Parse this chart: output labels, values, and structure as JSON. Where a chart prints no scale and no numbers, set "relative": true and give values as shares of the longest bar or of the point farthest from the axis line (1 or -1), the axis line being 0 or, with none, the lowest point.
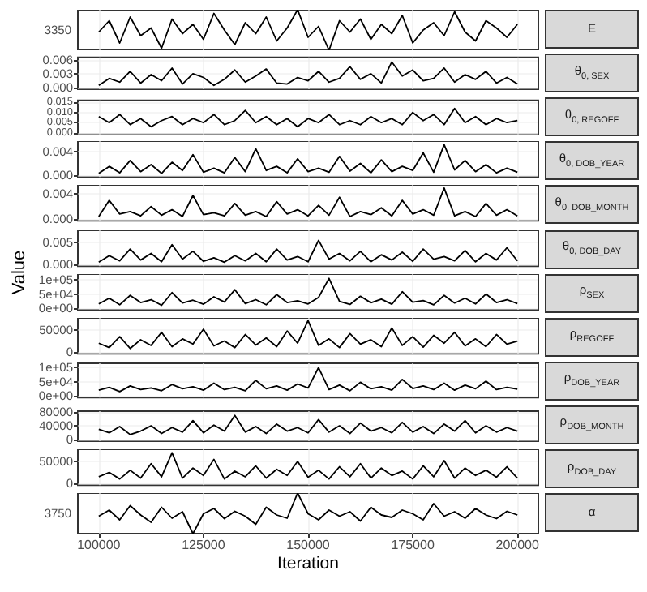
{
  "chart_data": [
    {
      "type": "line",
      "y2label": "E",
      "relative": true,
      "annotations": [
        "3350"
      ],
      "tick_labels": "y",
      "grid": true,
      "xlim": [
        95000,
        205000
      ],
      "xticks": [
        100000,
        125000,
        150000,
        175000,
        200000
      ],
      "x": [
        100000,
        102500,
        105000,
        107500,
        110000,
        112500,
        115000,
        117500,
        120000,
        122500,
        125000,
        127500,
        130000,
        132500,
        135000,
        137500,
        140000,
        142500,
        145000,
        147500,
        150000,
        152500,
        155000,
        157500,
        160000,
        162500,
        165000,
        167500,
        170000,
        172500,
        175000,
        177500,
        180000,
        182500,
        185000,
        187500,
        190000,
        192500,
        195000,
        197500,
        200000
      ],
      "series": [
        {
          "color": "#000000",
          "values": [
            0.45,
            0.73,
            0.18,
            0.82,
            0.36,
            0.55,
            0.05,
            0.77,
            0.41,
            0.64,
            0.27,
            0.91,
            0.5,
            0.14,
            0.68,
            0.41,
            0.82,
            0.23,
            0.55,
            1,
            0.32,
            0.59,
            0,
            0.73,
            0.45,
            0.77,
            0.27,
            0.64,
            0.41,
            0.86,
            0.18,
            0.5,
            0.68,
            0.36,
            0.95,
            0.45,
            0.23,
            0.73,
            0.55,
            0.32,
            0.64
          ]
        }
      ]
    },
    {
      "type": "line",
      "y2label": "θ$_{0, SEX}$",
      "tick_labels": "y",
      "grid": true,
      "xlim": [
        95000,
        205000
      ],
      "xticks": [
        100000,
        125000,
        150000,
        175000,
        200000
      ],
      "ylim": [
        -0.0003,
        0.0065
      ],
      "yticks": [
        {
          "value": 0,
          "label": "0.000"
        },
        {
          "value": 0.003,
          "label": "0.003"
        },
        {
          "value": 0.006,
          "label": "0.006"
        }
      ],
      "x": [
        100000,
        102500,
        105000,
        107500,
        110000,
        112500,
        115000,
        117500,
        120000,
        122500,
        125000,
        127500,
        130000,
        132500,
        135000,
        137500,
        140000,
        142500,
        145000,
        147500,
        150000,
        152500,
        155000,
        157500,
        160000,
        162500,
        165000,
        167500,
        170000,
        172500,
        175000,
        177500,
        180000,
        182500,
        185000,
        187500,
        190000,
        192500,
        195000,
        197500,
        200000
      ],
      "series": [
        {
          "color": "#000000",
          "values": [
            0.0005,
            0.002,
            0.0012,
            0.0035,
            0.001,
            0.0028,
            0.0015,
            0.0042,
            0.0008,
            0.003,
            0.0022,
            0.0005,
            0.0018,
            0.0038,
            0.0012,
            0.0025,
            0.004,
            0.001,
            0.0008,
            0.0022,
            0.0015,
            0.0035,
            0.0012,
            0.002,
            0.0045,
            0.0018,
            0.003,
            0.001,
            0.0055,
            0.0025,
            0.0038,
            0.0015,
            0.002,
            0.0042,
            0.0012,
            0.0028,
            0.0018,
            0.0035,
            0.001,
            0.0022,
            0.0008
          ]
        }
      ]
    },
    {
      "type": "line",
      "y2label": "θ$_{0, REGOFF}$",
      "tick_labels": "y",
      "grid": true,
      "xlim": [
        95000,
        205000
      ],
      "xticks": [
        100000,
        125000,
        150000,
        175000,
        200000
      ],
      "ylim": [
        -0.0008,
        0.016
      ],
      "yticks": [
        {
          "value": 0,
          "label": "0.000"
        },
        {
          "value": 0.005,
          "label": "0.005"
        },
        {
          "value": 0.01,
          "label": "0.010"
        },
        {
          "value": 0.015,
          "label": "0.015"
        }
      ],
      "x": [
        100000,
        102500,
        105000,
        107500,
        110000,
        112500,
        115000,
        117500,
        120000,
        122500,
        125000,
        127500,
        130000,
        132500,
        135000,
        137500,
        140000,
        142500,
        145000,
        147500,
        150000,
        152500,
        155000,
        157500,
        160000,
        162500,
        165000,
        167500,
        170000,
        172500,
        175000,
        177500,
        180000,
        182500,
        185000,
        187500,
        190000,
        192500,
        195000,
        197500,
        200000
      ],
      "series": [
        {
          "color": "#000000",
          "values": [
            0.008,
            0.005,
            0.009,
            0.004,
            0.007,
            0.003,
            0.006,
            0.008,
            0.004,
            0.007,
            0.005,
            0.009,
            0.004,
            0.006,
            0.011,
            0.005,
            0.008,
            0.004,
            0.007,
            0.003,
            0.007,
            0.005,
            0.009,
            0.004,
            0.006,
            0.004,
            0.008,
            0.005,
            0.007,
            0.004,
            0.01,
            0.006,
            0.009,
            0.004,
            0.012,
            0.005,
            0.008,
            0.004,
            0.007,
            0.005,
            0.006
          ]
        }
      ]
    },
    {
      "type": "line",
      "y2label": "θ$_{0, DOB_YEAR}$",
      "tick_labels": "y",
      "grid": true,
      "xlim": [
        95000,
        205000
      ],
      "xticks": [
        100000,
        125000,
        150000,
        175000,
        200000
      ],
      "ylim": [
        -0.0003,
        0.0058
      ],
      "yticks": [
        {
          "value": 0,
          "label": "0.000"
        },
        {
          "value": 0.004,
          "label": "0.004"
        }
      ],
      "x": [
        100000,
        102500,
        105000,
        107500,
        110000,
        112500,
        115000,
        117500,
        120000,
        122500,
        125000,
        127500,
        130000,
        132500,
        135000,
        137500,
        140000,
        142500,
        145000,
        147500,
        150000,
        152500,
        155000,
        157500,
        160000,
        162500,
        165000,
        167500,
        170000,
        172500,
        175000,
        177500,
        180000,
        182500,
        185000,
        187500,
        190000,
        192500,
        195000,
        197500,
        200000
      ],
      "series": [
        {
          "color": "#000000",
          "values": [
            0.0003,
            0.0015,
            0.0004,
            0.0025,
            0.0006,
            0.0018,
            0.0003,
            0.0022,
            0.0008,
            0.0035,
            0.0005,
            0.0012,
            0.0004,
            0.003,
            0.0006,
            0.0045,
            0.0008,
            0.0015,
            0.0004,
            0.0028,
            0.0006,
            0.0012,
            0.0005,
            0.0032,
            0.0007,
            0.002,
            0.0004,
            0.0026,
            0.0006,
            0.0015,
            0.0008,
            0.0038,
            0.0005,
            0.0052,
            0.0009,
            0.0025,
            0.0006,
            0.0018,
            0.0004,
            0.0012,
            0.0005
          ]
        }
      ]
    },
    {
      "type": "line",
      "y2label": "θ$_{0, DOB_MONTH}$",
      "tick_labels": "y",
      "grid": true,
      "xlim": [
        95000,
        205000
      ],
      "xticks": [
        100000,
        125000,
        150000,
        175000,
        200000
      ],
      "ylim": [
        -0.0003,
        0.0055
      ],
      "yticks": [
        {
          "value": 0,
          "label": "0.000"
        },
        {
          "value": 0.004,
          "label": "0.004"
        }
      ],
      "x": [
        100000,
        102500,
        105000,
        107500,
        110000,
        112500,
        115000,
        117500,
        120000,
        122500,
        125000,
        127500,
        130000,
        132500,
        135000,
        137500,
        140000,
        142500,
        145000,
        147500,
        150000,
        152500,
        155000,
        157500,
        160000,
        162500,
        165000,
        167500,
        170000,
        172500,
        175000,
        177500,
        180000,
        182500,
        185000,
        187500,
        190000,
        192500,
        195000,
        197500,
        200000
      ],
      "series": [
        {
          "color": "#000000",
          "values": [
            0.0004,
            0.003,
            0.0008,
            0.0012,
            0.0005,
            0.002,
            0.0006,
            0.0015,
            0.0004,
            0.0038,
            0.0007,
            0.001,
            0.0005,
            0.0025,
            0.0006,
            0.0012,
            0.0004,
            0.0028,
            0.0008,
            0.0015,
            0.0005,
            0.0022,
            0.0006,
            0.0035,
            0.0004,
            0.0012,
            0.0007,
            0.0018,
            0.0005,
            0.003,
            0.0008,
            0.0015,
            0.0006,
            0.005,
            0.0005,
            0.0012,
            0.0004,
            0.0025,
            0.0006,
            0.0015,
            0.0005
          ]
        }
      ]
    },
    {
      "type": "line",
      "y2label": "θ$_{0, DOB_DAY}$",
      "tick_labels": "y",
      "grid": true,
      "xlim": [
        95000,
        205000
      ],
      "xticks": [
        100000,
        125000,
        150000,
        175000,
        200000
      ],
      "ylim": [
        -0.0004,
        0.0078
      ],
      "yticks": [
        {
          "value": 0,
          "label": "0.000"
        },
        {
          "value": 0.005,
          "label": "0.005"
        }
      ],
      "x": [
        100000,
        102500,
        105000,
        107500,
        110000,
        112500,
        115000,
        117500,
        120000,
        122500,
        125000,
        127500,
        130000,
        132500,
        135000,
        137500,
        140000,
        142500,
        145000,
        147500,
        150000,
        152500,
        155000,
        157500,
        160000,
        162500,
        165000,
        167500,
        170000,
        172500,
        175000,
        177500,
        180000,
        182500,
        185000,
        187500,
        190000,
        192500,
        195000,
        197500,
        200000
      ],
      "series": [
        {
          "color": "#000000",
          "values": [
            0.0005,
            0.002,
            0.0008,
            0.0035,
            0.001,
            0.0025,
            0.0006,
            0.0045,
            0.0012,
            0.003,
            0.0007,
            0.0015,
            0.0005,
            0.002,
            0.0008,
            0.0025,
            0.0006,
            0.0035,
            0.001,
            0.0018,
            0.0006,
            0.0055,
            0.0012,
            0.0025,
            0.0008,
            0.003,
            0.0006,
            0.0022,
            0.001,
            0.0028,
            0.0007,
            0.0035,
            0.0012,
            0.0018,
            0.0008,
            0.0032,
            0.0006,
            0.0025,
            0.001,
            0.0038,
            0.0008
          ]
        }
      ]
    },
    {
      "type": "line",
      "y2label": "ρ$_{SEX}$",
      "ylabel": "Value",
      "tick_labels": "y",
      "grid": true,
      "xlim": [
        95000,
        205000
      ],
      "xticks": [
        100000,
        125000,
        150000,
        175000,
        200000
      ],
      "ylim": [
        -6000,
        120000
      ],
      "yticks": [
        {
          "value": 0,
          "label": "0e+00"
        },
        {
          "value": 50000,
          "label": "5e+04"
        },
        {
          "value": 100000,
          "label": "1e+05"
        }
      ],
      "x": [
        100000,
        102500,
        105000,
        107500,
        110000,
        112500,
        115000,
        117500,
        120000,
        122500,
        125000,
        127500,
        130000,
        132500,
        135000,
        137500,
        140000,
        142500,
        145000,
        147500,
        150000,
        152500,
        155000,
        157500,
        160000,
        162500,
        165000,
        167500,
        170000,
        172500,
        175000,
        177500,
        180000,
        182500,
        185000,
        187500,
        190000,
        192500,
        195000,
        197500,
        200000
      ],
      "series": [
        {
          "color": "#000000",
          "values": [
            15000,
            35000,
            12000,
            45000,
            20000,
            30000,
            10000,
            55000,
            18000,
            28000,
            14000,
            40000,
            22000,
            65000,
            16000,
            30000,
            12000,
            48000,
            20000,
            26000,
            15000,
            38000,
            105000,
            24000,
            13000,
            42000,
            19000,
            32000,
            14000,
            58000,
            21000,
            27000,
            12000,
            45000,
            18000,
            35000,
            15000,
            50000,
            20000,
            30000,
            16000
          ]
        }
      ]
    },
    {
      "type": "line",
      "y2label": "ρ$_{REGOFF}$",
      "tick_labels": "y",
      "grid": true,
      "xlim": [
        95000,
        205000
      ],
      "xticks": [
        100000,
        125000,
        150000,
        175000,
        200000
      ],
      "ylim": [
        -4000,
        78000
      ],
      "yticks": [
        0,
        50000
      ],
      "x": [
        100000,
        102500,
        105000,
        107500,
        110000,
        112500,
        115000,
        117500,
        120000,
        122500,
        125000,
        127500,
        130000,
        132500,
        135000,
        137500,
        140000,
        142500,
        145000,
        147500,
        150000,
        152500,
        155000,
        157500,
        160000,
        162500,
        165000,
        167500,
        170000,
        172500,
        175000,
        177500,
        180000,
        182500,
        185000,
        187500,
        190000,
        192500,
        195000,
        197500,
        200000
      ],
      "series": [
        {
          "color": "#000000",
          "values": [
            20000,
            10000,
            35000,
            8000,
            28000,
            15000,
            45000,
            12000,
            30000,
            18000,
            52000,
            14000,
            25000,
            10000,
            40000,
            16000,
            32000,
            12000,
            48000,
            20000,
            72000,
            15000,
            30000,
            10000,
            42000,
            18000,
            28000,
            12000,
            55000,
            15000,
            35000,
            11000,
            38000,
            20000,
            45000,
            14000,
            30000,
            12000,
            40000,
            18000,
            25000
          ]
        }
      ]
    },
    {
      "type": "line",
      "y2label": "ρ$_{DOB_YEAR}$",
      "tick_labels": "y",
      "grid": true,
      "xlim": [
        95000,
        205000
      ],
      "xticks": [
        100000,
        125000,
        150000,
        175000,
        200000
      ],
      "ylim": [
        -6000,
        115000
      ],
      "yticks": [
        {
          "value": 0,
          "label": "0e+00"
        },
        {
          "value": 50000,
          "label": "5e+04"
        },
        {
          "value": 100000,
          "label": "1e+05"
        }
      ],
      "x": [
        100000,
        102500,
        105000,
        107500,
        110000,
        112500,
        115000,
        117500,
        120000,
        122500,
        125000,
        127500,
        130000,
        132500,
        135000,
        137500,
        140000,
        142500,
        145000,
        147500,
        150000,
        152500,
        155000,
        157500,
        160000,
        162500,
        165000,
        167500,
        170000,
        172500,
        175000,
        177500,
        180000,
        182500,
        185000,
        187500,
        190000,
        192500,
        195000,
        197500,
        200000
      ],
      "series": [
        {
          "color": "#000000",
          "values": [
            20000,
            30000,
            15000,
            35000,
            22000,
            28000,
            18000,
            40000,
            25000,
            32000,
            20000,
            45000,
            22000,
            30000,
            18000,
            55000,
            25000,
            35000,
            20000,
            42000,
            28000,
            100000,
            22000,
            38000,
            18000,
            48000,
            25000,
            32000,
            20000,
            58000,
            26000,
            35000,
            22000,
            45000,
            20000,
            38000,
            25000,
            52000,
            22000,
            30000,
            24000
          ]
        }
      ]
    },
    {
      "type": "line",
      "y2label": "ρ$_{DOB_MONTH}$",
      "tick_labels": "y",
      "grid": true,
      "xlim": [
        95000,
        205000
      ],
      "xticks": [
        100000,
        125000,
        150000,
        175000,
        200000
      ],
      "ylim": [
        -4000,
        82000
      ],
      "yticks": [
        0,
        40000,
        80000
      ],
      "x": [
        100000,
        102500,
        105000,
        107500,
        110000,
        112500,
        115000,
        117500,
        120000,
        122500,
        125000,
        127500,
        130000,
        132500,
        135000,
        137500,
        140000,
        142500,
        145000,
        147500,
        150000,
        152500,
        155000,
        157500,
        160000,
        162500,
        165000,
        167500,
        170000,
        172500,
        175000,
        177500,
        180000,
        182500,
        185000,
        187500,
        190000,
        192500,
        195000,
        197500,
        200000
      ],
      "series": [
        {
          "color": "#000000",
          "values": [
            30000,
            20000,
            38000,
            15000,
            25000,
            40000,
            18000,
            35000,
            22000,
            55000,
            20000,
            42000,
            25000,
            70000,
            22000,
            38000,
            18000,
            45000,
            25000,
            35000,
            20000,
            58000,
            22000,
            40000,
            18000,
            48000,
            25000,
            35000,
            20000,
            50000,
            22000,
            38000,
            18000,
            45000,
            25000,
            55000,
            20000,
            40000,
            22000,
            35000,
            25000
          ]
        }
      ]
    },
    {
      "type": "line",
      "y2label": "ρ$_{DOB_DAY}$",
      "tick_labels": "y",
      "grid": true,
      "xlim": [
        95000,
        205000
      ],
      "xticks": [
        100000,
        125000,
        150000,
        175000,
        200000
      ],
      "ylim": [
        -4000,
        78000
      ],
      "yticks": [
        0,
        50000
      ],
      "x": [
        100000,
        102500,
        105000,
        107500,
        110000,
        112500,
        115000,
        117500,
        120000,
        122500,
        125000,
        127500,
        130000,
        132500,
        135000,
        137500,
        140000,
        142500,
        145000,
        147500,
        150000,
        152500,
        155000,
        157500,
        160000,
        162500,
        165000,
        167500,
        170000,
        172500,
        175000,
        177500,
        180000,
        182500,
        185000,
        187500,
        190000,
        192500,
        195000,
        197500,
        200000
      ],
      "series": [
        {
          "color": "#000000",
          "values": [
            15000,
            25000,
            10000,
            30000,
            12000,
            45000,
            15000,
            70000,
            12000,
            35000,
            18000,
            55000,
            10000,
            28000,
            15000,
            40000,
            12000,
            32000,
            18000,
            50000,
            14000,
            30000,
            10000,
            38000,
            15000,
            45000,
            12000,
            35000,
            18000,
            28000,
            10000,
            40000,
            15000,
            52000,
            12000,
            35000,
            18000,
            30000,
            14000,
            38000,
            12000
          ]
        }
      ]
    },
    {
      "type": "line",
      "y2label": "α",
      "relative": true,
      "annotations": [
        "3750"
      ],
      "xlabel": "Iteration",
      "grid": true,
      "xlim": [
        95000,
        205000
      ],
      "xticks": [
        100000,
        125000,
        150000,
        175000,
        200000
      ],
      "x": [
        100000,
        102500,
        105000,
        107500,
        110000,
        112500,
        115000,
        117500,
        120000,
        122500,
        125000,
        127500,
        130000,
        132500,
        135000,
        137500,
        140000,
        142500,
        145000,
        147500,
        150000,
        152500,
        155000,
        157500,
        160000,
        162500,
        165000,
        167500,
        170000,
        172500,
        175000,
        177500,
        180000,
        182500,
        185000,
        187500,
        190000,
        192500,
        195000,
        197500,
        200000
      ],
      "series": [
        {
          "color": "#000000",
          "values": [
            0.43,
            0.58,
            0.34,
            0.69,
            0.46,
            0.28,
            0.65,
            0.38,
            0.54,
            0,
            0.49,
            0.62,
            0.37,
            0.55,
            0.43,
            0.23,
            0.65,
            0.46,
            0.38,
            1,
            0.49,
            0.34,
            0.58,
            0.43,
            0.54,
            0.31,
            0.65,
            0.46,
            0.4,
            0.58,
            0.49,
            0.34,
            0.74,
            0.43,
            0.54,
            0.38,
            0.62,
            0.46,
            0.37,
            0.55,
            0.46
          ]
        }
      ]
    }
  ]
}
